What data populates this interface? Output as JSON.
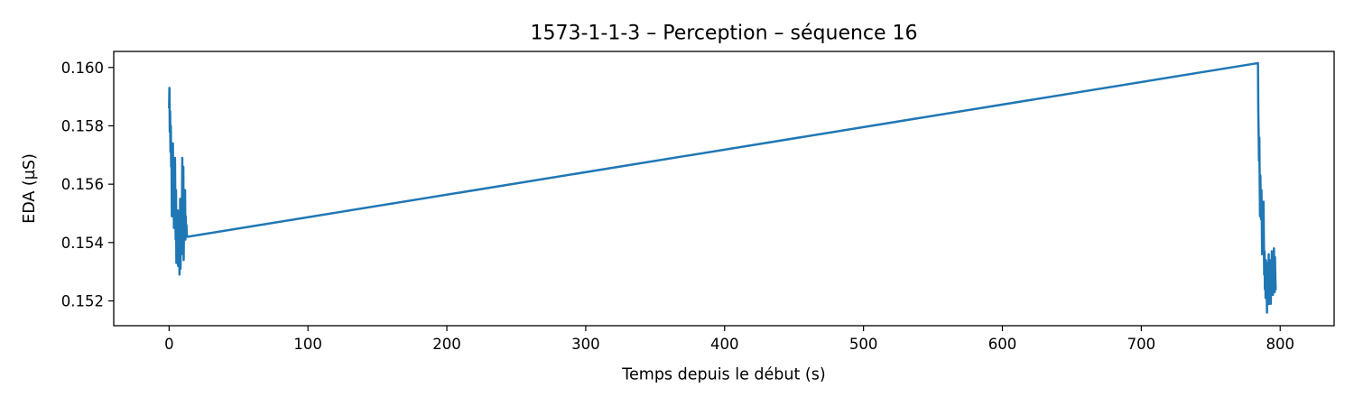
{
  "chart_data": {
    "type": "line",
    "title": "1573-1-1-3 – Perception – séquence 16",
    "xlabel": "Temps depuis le début (s)",
    "ylabel": "EDA (µS)",
    "xlim": [
      -39.85,
      838.85
    ],
    "ylim": [
      0.15115,
      0.16055
    ],
    "xticks": [
      0,
      100,
      200,
      300,
      400,
      500,
      600,
      700,
      800
    ],
    "xtick_labels": [
      "0",
      "100",
      "200",
      "300",
      "400",
      "500",
      "600",
      "700",
      "800"
    ],
    "yticks": [
      0.152,
      0.154,
      0.156,
      0.158,
      0.16
    ],
    "ytick_labels": [
      "0.152",
      "0.154",
      "0.156",
      "0.158",
      "0.160"
    ],
    "grid": false,
    "color": "#1f77b4",
    "series": [
      {
        "x": [
          0.0,
          0.25,
          0.5,
          0.75,
          1.0,
          1.25,
          1.5,
          1.75,
          2.0,
          2.25,
          2.5,
          2.75,
          3.0,
          3.25,
          3.5,
          3.75,
          4.0,
          4.25,
          4.5,
          4.75,
          5.0,
          5.25,
          5.5,
          5.75,
          6.0,
          6.25,
          6.5,
          6.75,
          7.0,
          7.25,
          7.5,
          7.75,
          8.0,
          8.25,
          8.5,
          8.75,
          9.0,
          9.25,
          9.5,
          9.75,
          10.0,
          10.25,
          10.5,
          10.75,
          11.0,
          11.25,
          11.5,
          11.75,
          12.0,
          12.25,
          12.5,
          12.75,
          13.0,
          13.25,
          13.5,
          784.0,
          784.25,
          784.5,
          784.75,
          785.0,
          785.25,
          785.5,
          785.75,
          786.0,
          786.25,
          786.5,
          786.75,
          787.0,
          787.25,
          787.5,
          787.75,
          788.0,
          788.25,
          788.5,
          788.75,
          789.0,
          789.25,
          789.5,
          789.75,
          790.0,
          790.25,
          790.5,
          790.75,
          791.0,
          791.25,
          791.5,
          791.75,
          792.0,
          792.25,
          792.5,
          792.75,
          793.0,
          793.25,
          793.5,
          793.75,
          794.0,
          794.25,
          794.5,
          794.75,
          795.0,
          795.25,
          795.5,
          795.75,
          796.0,
          796.25,
          796.5,
          796.75,
          797.0,
          797.25,
          797.5
        ],
        "y": [
          0.1586,
          0.1593,
          0.1578,
          0.1585,
          0.1571,
          0.158,
          0.1566,
          0.1573,
          0.1549,
          0.1562,
          0.1551,
          0.1574,
          0.155,
          0.1559,
          0.1545,
          0.1563,
          0.1548,
          0.1569,
          0.1552,
          0.1541,
          0.1558,
          0.1533,
          0.1546,
          0.155,
          0.1538,
          0.1551,
          0.1532,
          0.1546,
          0.1539,
          0.155,
          0.1529,
          0.1543,
          0.1555,
          0.1531,
          0.1549,
          0.1542,
          0.1536,
          0.1548,
          0.1569,
          0.1537,
          0.1551,
          0.1566,
          0.1534,
          0.1549,
          0.1555,
          0.1542,
          0.1558,
          0.1541,
          0.1549,
          0.1543,
          0.1546,
          0.1543,
          0.1542,
          0.1542,
          0.1542,
          0.16015,
          0.1585,
          0.1577,
          0.1568,
          0.1576,
          0.1561,
          0.1549,
          0.1563,
          0.1551,
          0.1548,
          0.1558,
          0.155,
          0.1536,
          0.1551,
          0.1546,
          0.1539,
          0.1554,
          0.1541,
          0.1529,
          0.1537,
          0.1524,
          0.1533,
          0.1521,
          0.1534,
          0.1522,
          0.1526,
          0.1516,
          0.1533,
          0.1522,
          0.1531,
          0.1519,
          0.1536,
          0.1525,
          0.1519,
          0.1534,
          0.1522,
          0.1528,
          0.1519,
          0.1531,
          0.1524,
          0.1537,
          0.1525,
          0.1528,
          0.1522,
          0.1533,
          0.1524,
          0.1538,
          0.1529,
          0.1523,
          0.1535,
          0.1528,
          0.1524,
          0.1524,
          0.1524,
          0.1524
        ]
      }
    ]
  }
}
